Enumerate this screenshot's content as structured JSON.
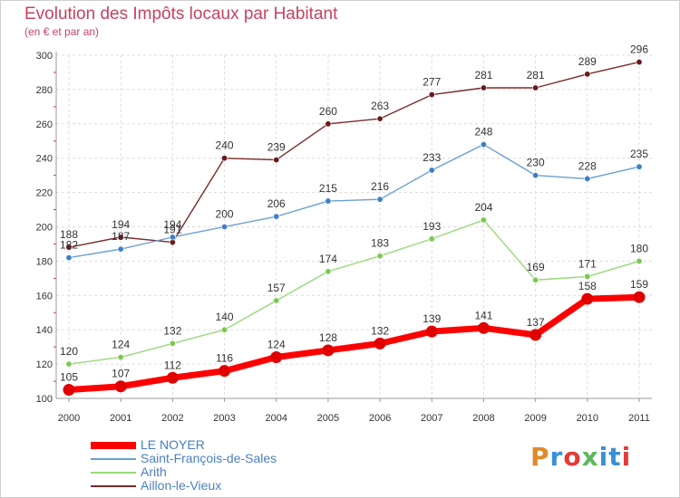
{
  "header": {
    "title": "Evolution des Impôts locaux par Habitant",
    "subtitle": "(en € et par an)"
  },
  "logo": {
    "text": "Proxiti",
    "colors": [
      "#e08a2a",
      "#3b8fd6",
      "#e33b3b",
      "#5cb85c",
      "#3b8fd6",
      "#3b8fd6",
      "#e33b3b"
    ]
  },
  "chart_data": {
    "type": "line",
    "title": "Evolution des Impôts locaux par Habitant",
    "subtitle": "(en € et par an)",
    "xlabel": "",
    "ylabel": "",
    "x": [
      "2000",
      "2001",
      "2002",
      "2003",
      "2004",
      "2005",
      "2006",
      "2007",
      "2008",
      "2009",
      "2010",
      "2011"
    ],
    "ylim": [
      100,
      300
    ],
    "yticks": [
      100,
      120,
      140,
      160,
      180,
      200,
      220,
      240,
      260,
      280,
      300
    ],
    "grid": true,
    "legend_position": "bottom-left",
    "series": [
      {
        "name": "LE NOYER",
        "color": "#ff0000",
        "marker": "#e00000",
        "values": [
          105,
          107,
          112,
          116,
          124,
          128,
          132,
          139,
          141,
          137,
          158,
          159
        ],
        "thick": true
      },
      {
        "name": "Saint-François-de-Sales",
        "color": "#6a9fd4",
        "marker": "#3b7fc8",
        "values": [
          182,
          187,
          194,
          200,
          206,
          215,
          216,
          233,
          248,
          230,
          228,
          235
        ]
      },
      {
        "name": "Arith",
        "color": "#9ad97a",
        "marker": "#7cc84f",
        "values": [
          120,
          124,
          132,
          140,
          157,
          174,
          183,
          193,
          204,
          169,
          171,
          180
        ]
      },
      {
        "name": "Aillon-le-Vieux",
        "color": "#7a2b2b",
        "marker": "#6a1a1a",
        "values": [
          188,
          194,
          191,
          240,
          239,
          260,
          263,
          277,
          281,
          281,
          289,
          296
        ]
      }
    ]
  }
}
